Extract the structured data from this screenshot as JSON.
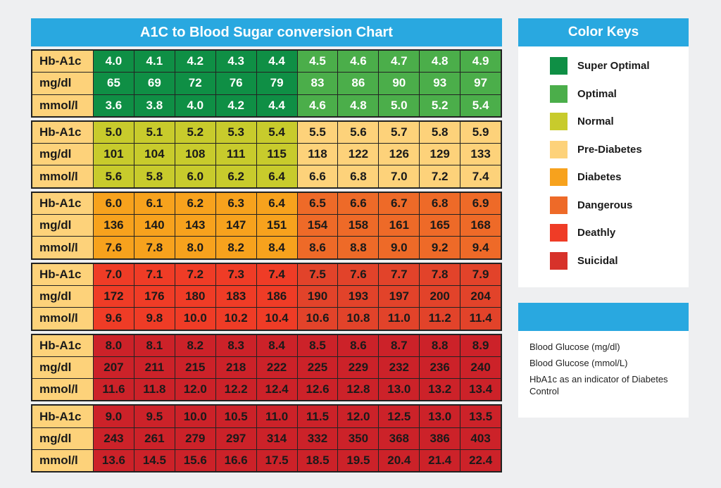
{
  "chart_data": {
    "type": "table",
    "title": "A1C to Blood Sugar conversion Chart",
    "row_labels": [
      "Hb-A1c",
      "mg/dl",
      "mmol/l"
    ],
    "groups": [
      {
        "hba1c": [
          "4.0",
          "4.1",
          "4.2",
          "4.3",
          "4.4",
          "4.5",
          "4.6",
          "4.7",
          "4.8",
          "4.9"
        ],
        "mgdl": [
          "65",
          "69",
          "72",
          "76",
          "79",
          "83",
          "86",
          "90",
          "93",
          "97"
        ],
        "mmol": [
          "3.6",
          "3.8",
          "4.0",
          "4.2",
          "4.4",
          "4.6",
          "4.8",
          "5.0",
          "5.2",
          "5.4"
        ],
        "colors": [
          "#0f8f45",
          "#4bae4a"
        ],
        "text": "#ffffff"
      },
      {
        "hba1c": [
          "5.0",
          "5.1",
          "5.2",
          "5.3",
          "5.4",
          "5.5",
          "5.6",
          "5.7",
          "5.8",
          "5.9"
        ],
        "mgdl": [
          "101",
          "104",
          "108",
          "111",
          "115",
          "118",
          "122",
          "126",
          "129",
          "133"
        ],
        "mmol": [
          "5.6",
          "5.8",
          "6.0",
          "6.2",
          "6.4",
          "6.6",
          "6.8",
          "7.0",
          "7.2",
          "7.4"
        ],
        "colors": [
          "#c8cb2c",
          "#fdd27a"
        ],
        "text": "#1a1a1a"
      },
      {
        "hba1c": [
          "6.0",
          "6.1",
          "6.2",
          "6.3",
          "6.4",
          "6.5",
          "6.6",
          "6.7",
          "6.8",
          "6.9"
        ],
        "mgdl": [
          "136",
          "140",
          "143",
          "147",
          "151",
          "154",
          "158",
          "161",
          "165",
          "168"
        ],
        "mmol": [
          "7.6",
          "7.8",
          "8.0",
          "8.2",
          "8.4",
          "8.6",
          "8.8",
          "9.0",
          "9.2",
          "9.4"
        ],
        "colors": [
          "#f7a21d",
          "#ee6a28"
        ],
        "text": "#1a1a1a"
      },
      {
        "hba1c": [
          "7.0",
          "7.1",
          "7.2",
          "7.3",
          "7.4",
          "7.5",
          "7.6",
          "7.7",
          "7.8",
          "7.9"
        ],
        "mgdl": [
          "172",
          "176",
          "180",
          "183",
          "186",
          "190",
          "193",
          "197",
          "200",
          "204"
        ],
        "mmol": [
          "9.6",
          "9.8",
          "10.0",
          "10.2",
          "10.4",
          "10.6",
          "10.8",
          "11.0",
          "11.2",
          "11.4"
        ],
        "colors": [
          "#ef3c26",
          "#e2432a"
        ],
        "text": "#1a1a1a"
      },
      {
        "hba1c": [
          "8.0",
          "8.1",
          "8.2",
          "8.3",
          "8.4",
          "8.5",
          "8.6",
          "8.7",
          "8.8",
          "8.9"
        ],
        "mgdl": [
          "207",
          "211",
          "215",
          "218",
          "222",
          "225",
          "229",
          "232",
          "236",
          "240"
        ],
        "mmol": [
          "11.6",
          "11.8",
          "12.0",
          "12.2",
          "12.4",
          "12.6",
          "12.8",
          "13.0",
          "13.2",
          "13.4"
        ],
        "colors": [
          "#cc2229",
          "#cc2229"
        ],
        "text": "#1a1a1a"
      },
      {
        "hba1c": [
          "9.0",
          "9.5",
          "10.0",
          "10.5",
          "11.0",
          "11.5",
          "12.0",
          "12.5",
          "13.0",
          "13.5"
        ],
        "mgdl": [
          "243",
          "261",
          "279",
          "297",
          "314",
          "332",
          "350",
          "368",
          "386",
          "403"
        ],
        "mmol": [
          "13.6",
          "14.5",
          "15.6",
          "16.6",
          "17.5",
          "18.5",
          "19.5",
          "20.4",
          "21.4",
          "22.4"
        ],
        "colors": [
          "#cc2229",
          "#cc2229"
        ],
        "text": "#1a1a1a"
      }
    ]
  },
  "legend": {
    "title": "Color Keys",
    "items": [
      {
        "label": "Super Optimal",
        "color": "#0f8f45"
      },
      {
        "label": "Optimal",
        "color": "#4bae4a"
      },
      {
        "label": "Normal",
        "color": "#c8cb2c"
      },
      {
        "label": "Pre-Diabetes",
        "color": "#fdd27a"
      },
      {
        "label": "Diabetes",
        "color": "#f7a21d"
      },
      {
        "label": "Dangerous",
        "color": "#ee6a28"
      },
      {
        "label": "Deathly",
        "color": "#ef3c26"
      },
      {
        "label": "Suicidal",
        "color": "#d7322a"
      }
    ]
  },
  "info": {
    "lines": [
      "Blood Glucose (mg/dl)",
      "Blood Glucose (mmol/L)",
      "HbA1c as an indicator of Diabetes Control"
    ]
  },
  "accent": "#29a8e0"
}
